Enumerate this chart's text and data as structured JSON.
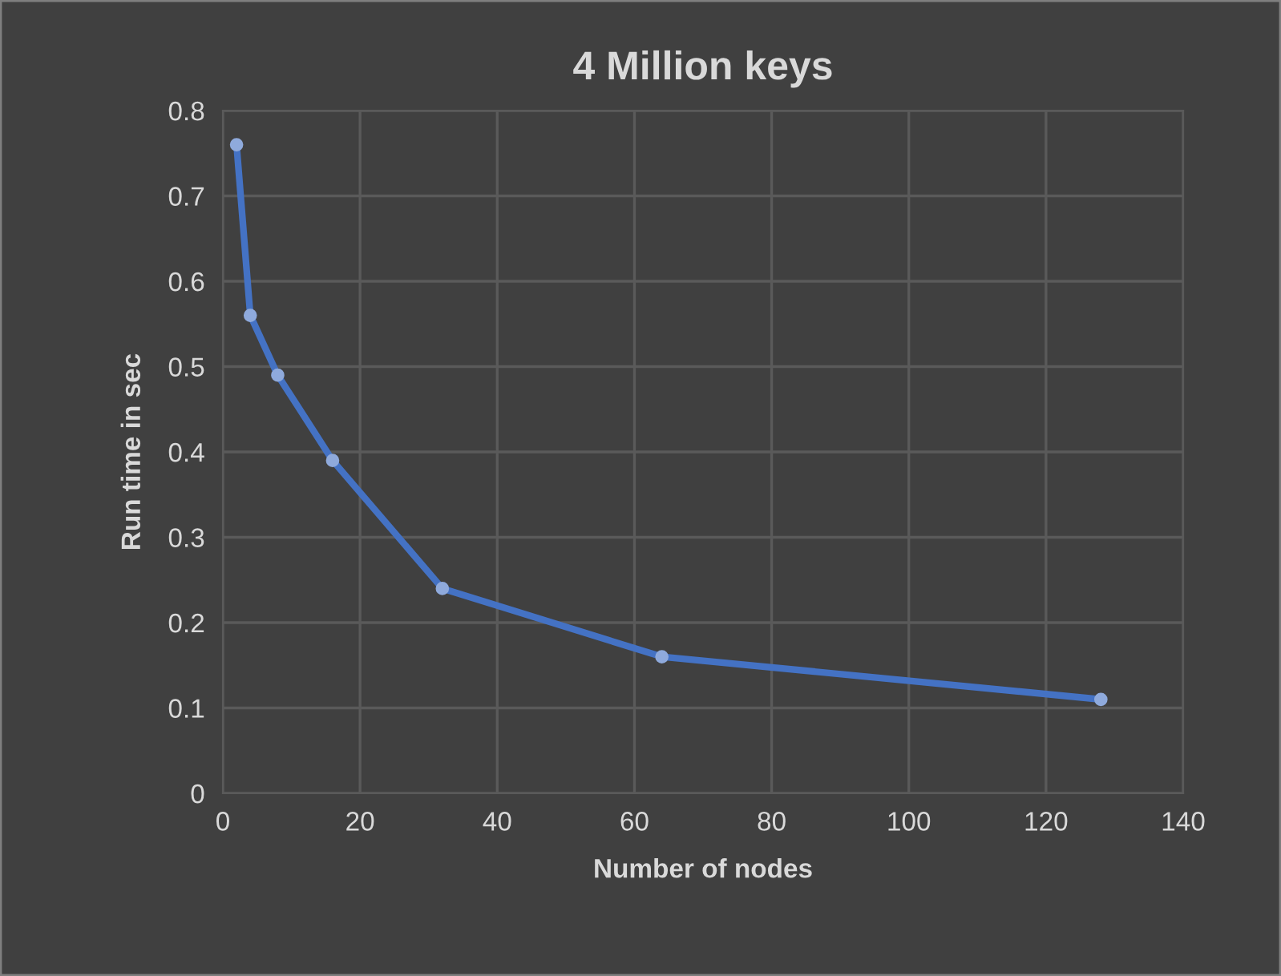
{
  "chart_data": {
    "type": "line",
    "title": "4 Million keys",
    "xlabel": "Number of nodes",
    "ylabel": "Run time in sec",
    "x": [
      2,
      4,
      8,
      16,
      32,
      64,
      128
    ],
    "series": [
      {
        "color": "#4472c4",
        "values": [
          0.76,
          0.56,
          0.49,
          0.39,
          0.24,
          0.16,
          0.11
        ]
      }
    ],
    "xlim": [
      0,
      140
    ],
    "xticks": [
      0,
      20,
      40,
      60,
      80,
      100,
      120,
      140
    ],
    "ylim": [
      0,
      0.8
    ],
    "yticks": [
      0,
      0.1,
      0.2,
      0.3,
      0.4,
      0.5,
      0.6,
      0.7,
      0.8
    ],
    "grid": true,
    "marker": "circle",
    "line_style": "solid",
    "legend": false
  }
}
